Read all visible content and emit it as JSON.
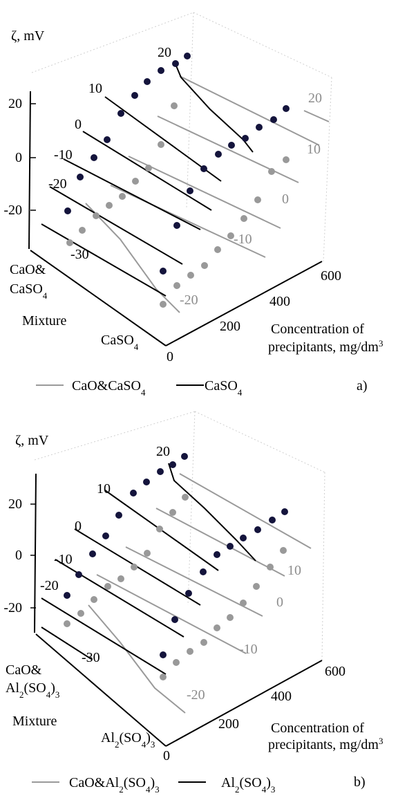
{
  "colors": {
    "mixture_line": "#9a9a9a",
    "single_line": "#000000",
    "dark_marker": "#14143c",
    "gray_marker": "#999999",
    "frame": "#cfcfcf"
  },
  "chart_data": [
    {
      "type": "3d-contour-scatter",
      "panel_label": "a)",
      "zlabel": "ζ, mV",
      "z_ticks": [
        "20",
        "0",
        "-20"
      ],
      "y_ticks": [
        "0",
        "200",
        "400",
        "600"
      ],
      "ylabel_line1": "Concentration of",
      "ylabel_line2": "precipitants, mg/dm",
      "ylabel_sup": "3",
      "x_categories": {
        "back_main": "CaO&",
        "back_sub_pre": "CaSO",
        "back_sub_sub": "4",
        "back_sub_post": "",
        "mid": "Mixture",
        "front_pre": "CaSO",
        "front_sub": "4",
        "front_post": ""
      },
      "legend": [
        {
          "pre": "CaO&CaSO",
          "sub": "4",
          "post": "",
          "color": "#9a9a9a"
        },
        {
          "pre": "CaSO",
          "sub": "4",
          "post": "",
          "color": "#000000"
        }
      ],
      "contour_labels_dark": [
        "20",
        "10",
        "0",
        "-10",
        "-20",
        "-30"
      ],
      "contour_labels_gray": [
        "20",
        "10",
        "0",
        "-10",
        "-20"
      ],
      "grid": false
    },
    {
      "type": "3d-contour-scatter",
      "panel_label": "b)",
      "zlabel": "ζ, mV",
      "z_ticks": [
        "20",
        "0",
        "-20"
      ],
      "y_ticks": [
        "0",
        "200",
        "400",
        "600"
      ],
      "ylabel_line1": "Concentration of",
      "ylabel_line2": "precipitants, mg/dm",
      "ylabel_sup": "3",
      "x_categories": {
        "back_main": "CaO&",
        "back_sub_pre": "Al",
        "back_sub_sub": "2",
        "back_sub_post": "(SO4)3",
        "mid": "Mixture",
        "front_pre": "Al",
        "front_sub": "2",
        "front_post": "(SO4)3"
      },
      "legend": [
        {
          "pre": "CaO&Al",
          "sub": "2",
          "post": "(SO4)3",
          "color": "#9a9a9a"
        },
        {
          "pre": "Al",
          "sub": "2",
          "post": "(SO4)3",
          "color": "#000000"
        }
      ],
      "contour_labels_dark": [
        "20",
        "10",
        "0",
        "-10",
        "-20",
        "-30"
      ],
      "contour_labels_gray": [
        "10",
        "0",
        "-10",
        "-20"
      ],
      "grid": false
    }
  ]
}
